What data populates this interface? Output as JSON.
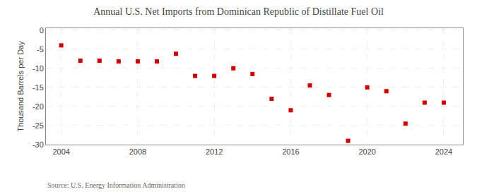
{
  "chart_data": {
    "type": "scatter",
    "title": "Annual U.S. Net Imports from Dominican Republic of Distillate Fuel Oil",
    "ylabel": "Thousand Barrels per Day",
    "annotations": [
      "Source: U.S. Energy Information Administration"
    ],
    "x": [
      2004,
      2005,
      2006,
      2007,
      2008,
      2009,
      2010,
      2011,
      2012,
      2013,
      2014,
      2015,
      2016,
      2017,
      2018,
      2019,
      2020,
      2021,
      2022,
      2023,
      2024
    ],
    "values": [
      -4.0,
      -8.0,
      -8.0,
      -8.2,
      -8.2,
      -8.2,
      -6.2,
      -12.0,
      -12.0,
      -10.0,
      -11.5,
      -18.0,
      -21.0,
      -14.5,
      -17.0,
      -29.0,
      -15.0,
      -16.0,
      -24.5,
      -19.0,
      -19.0
    ],
    "color": "#cc0000",
    "marker": "square",
    "xlim": [
      2003.2,
      2025.0
    ],
    "ylim": [
      -30,
      0.5
    ],
    "xticks": [
      2004,
      2008,
      2012,
      2016,
      2020,
      2024
    ],
    "yticks": [
      0,
      -5,
      -10,
      -15,
      -20,
      -25,
      -30
    ],
    "grid": true
  }
}
